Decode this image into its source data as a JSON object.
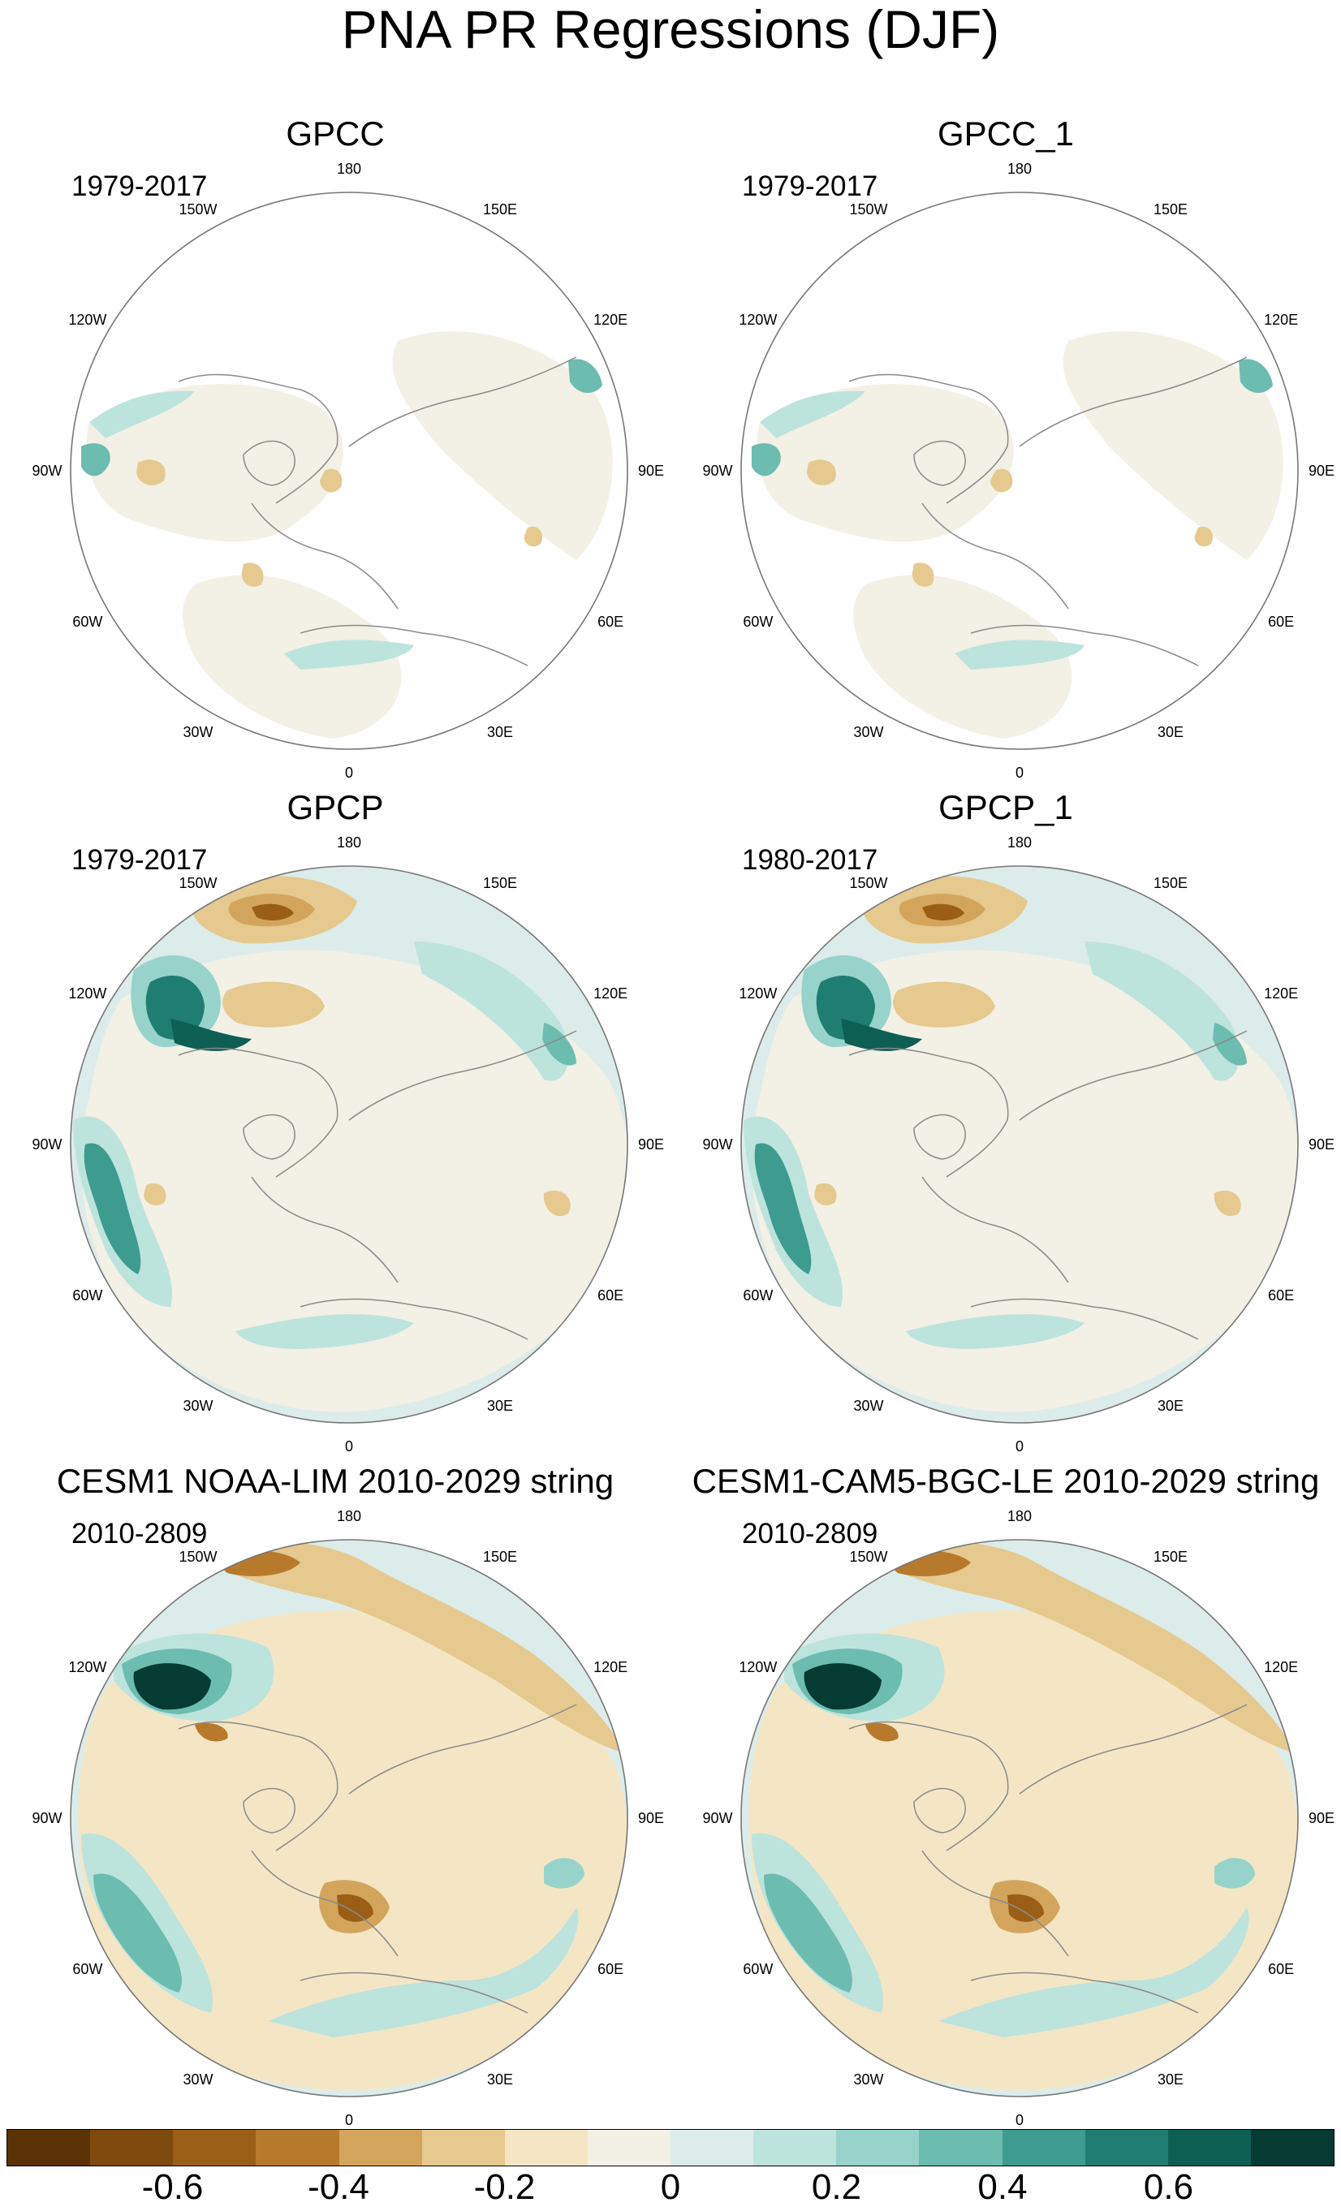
{
  "figure": {
    "title": "PNA PR Regressions (DJF)"
  },
  "panels": [
    {
      "title": "GPCC",
      "period": "1979-2017",
      "style": "land"
    },
    {
      "title": "GPCC_1",
      "period": "1979-2017",
      "style": "land"
    },
    {
      "title": "GPCP",
      "period": "1979-2017",
      "style": "obs"
    },
    {
      "title": "GPCP_1",
      "period": "1980-2017",
      "style": "obs"
    },
    {
      "title": "CESM1 NOAA-LIM 2010-2029 string",
      "period": "2010-2809",
      "style": "model"
    },
    {
      "title": "CESM1-CAM5-BGC-LE 2010-2029 string",
      "period": "2010-2809",
      "style": "model"
    }
  ],
  "lon_labels": [
    "180",
    "150E",
    "120E",
    "90E",
    "60E",
    "30E",
    "0",
    "30W",
    "60W",
    "90W",
    "120W",
    "150W"
  ],
  "colorbar": {
    "colors": [
      "#5c3306",
      "#7f4a0d",
      "#9a5e17",
      "#b77a2d",
      "#d3a55c",
      "#e5c98e",
      "#f4e6c5",
      "#f3f0e6",
      "#dcecea",
      "#bde3dd",
      "#97d3ca",
      "#6cbcb0",
      "#3e9b90",
      "#1f7d72",
      "#0d5f54",
      "#053b33"
    ],
    "tick_labels": [
      "-0.6",
      "-0.4",
      "-0.2",
      "0",
      "0.2",
      "0.4",
      "0.6"
    ],
    "tick_values": [
      -0.6,
      -0.4,
      -0.2,
      0,
      0.2,
      0.4,
      0.6
    ],
    "min": -0.8,
    "max": 0.8
  }
}
